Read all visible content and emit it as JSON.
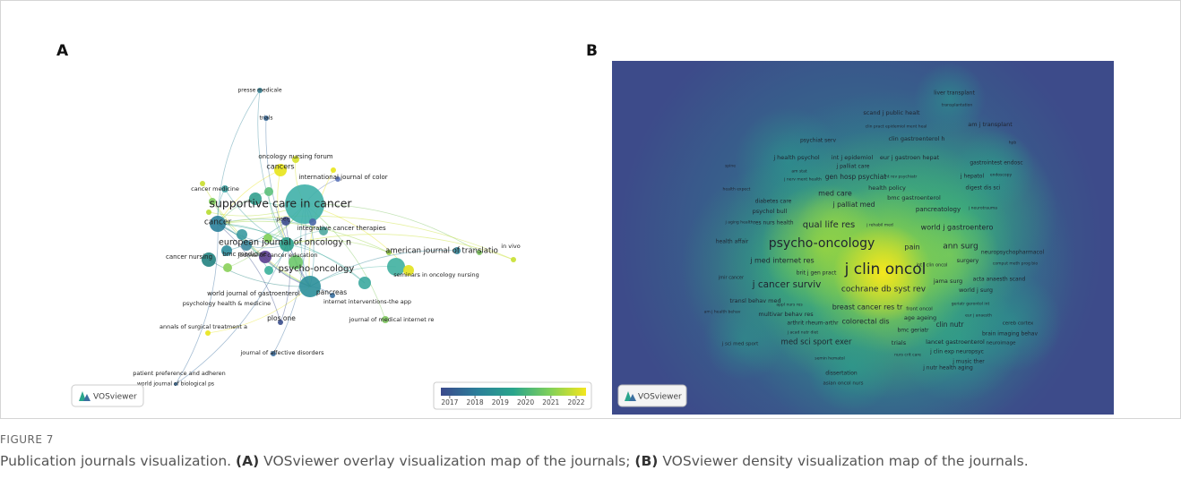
{
  "panels": [
    {
      "letter": "A",
      "labels": [
        "presse medicale",
        "trials",
        "oncology nursing forum",
        "cancers",
        "international journal of color",
        "cancer medicine",
        "supportive care in cancer",
        "peerj",
        "cancer",
        "integrative cancer therapies",
        "european journal of oncology n",
        "journal of cancer education",
        "american journal of translatio",
        "in vivo",
        "cancer nursing",
        "bmc medicine",
        "psycho-oncology",
        "seminars in oncology nursing",
        "world journal of gastroenterol",
        "pancreas",
        "psychology health & medicine",
        "internet interventions-the app",
        "plos one",
        "journal of medical internet re",
        "annals of surgical treatment a",
        "journal of affective disorders",
        "patient preference and adheren",
        "world journal of biological ps"
      ],
      "legend_ticks": [
        2017,
        2018,
        2019,
        2020,
        2021,
        2022
      ],
      "legend_lim": [
        2016.65,
        2022.39
      ],
      "logo": "VOSviewer"
    },
    {
      "letter": "B",
      "labels": [
        "liver transplant",
        "transplantation",
        "scand j public healt",
        "clin pract epidemiol ment heal",
        "am j transplant",
        "psychiat serv",
        "clin gastroenterol h",
        "hpb",
        "j health psychol",
        "int j epidemiol",
        "eur j gastroen hepat",
        "j palliat care",
        "gastrointest endosc",
        "spine",
        "am stat",
        "int rev psychiatr",
        "j hepatol",
        "endoscopy",
        "j nerv ment health",
        "gen hosp psychiat",
        "digest dis sci",
        "health expect",
        "health policy",
        "med care",
        "bmc gastroenterol",
        "diabetes care",
        "j palliat med",
        "pancreatology",
        "j neurotrauma",
        "psychol bull",
        "j aging health",
        "res nurs health",
        "qual life res",
        "j rehabil med",
        "world j gastroentero",
        "health affair",
        "psycho-oncology",
        "pain",
        "ann surg",
        "neuropsychopharmacol",
        "j med internet res",
        "surgery",
        "comput meth prog bio",
        "j clin oncol",
        "brit j gen pract",
        "int j clin oncol",
        "jmir cancer",
        "jama surg",
        "acta anaesth scand",
        "j cancer surviv",
        "cochrane db syst rev",
        "world j surg",
        "transl behav med",
        "appl nurs res",
        "breast cancer res tr",
        "front oncol",
        "geriatr gerontol int",
        "am j health behav",
        "multivar behav res",
        "age ageing",
        "eur j anaesth",
        "arthrit rheum-arthr",
        "colorectal dis",
        "clin nutr",
        "cereb cortex",
        "j acad nutr diet",
        "bmc geriatr",
        "brain imaging behav",
        "j sci med sport",
        "med sci sport exer",
        "trials",
        "lancet gastroenterol",
        "neuroimage",
        "nurs crit care",
        "j clin exp neuropsyc",
        "semin hematol",
        "j music ther",
        "j nutr health aging",
        "dissertation",
        "asian oncol nurs"
      ],
      "logo": "VOSviewer"
    }
  ],
  "caption": {
    "label": "FIGURE 7",
    "intro": "Publication journals visualization.",
    "a_tag": "(A)",
    "a_text": "VOSviewer overlay visualization map of the journals;",
    "b_tag": "(B)",
    "b_text": "VOSviewer density visualization map of the journals."
  }
}
